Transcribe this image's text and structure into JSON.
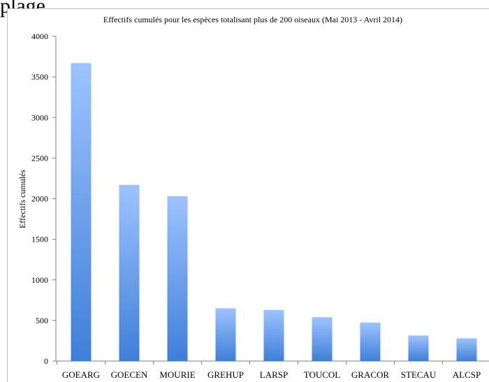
{
  "page": {
    "caption_fragment": "plage"
  },
  "chart_data": {
    "type": "bar",
    "title": "Effectifs cumulés pour les espèces totalisant plus de 200 oiseaux (Mai 2013 - Avril 2014)",
    "xlabel": "",
    "ylabel": "Effectifs cumulés",
    "ylim": [
      0,
      4000
    ],
    "yticks": [
      0,
      500,
      1000,
      1500,
      2000,
      2500,
      3000,
      3500,
      4000
    ],
    "categories": [
      "GOEARG",
      "GOECEN",
      "MOURIE",
      "GREHUP",
      "LARSP",
      "TOUCOL",
      "GRACOR",
      "STECAU",
      "ALCSP"
    ],
    "values": [
      3670,
      2170,
      2030,
      650,
      630,
      540,
      475,
      315,
      280
    ],
    "grid": false,
    "legend": "none",
    "colors": {
      "bar_top": "#9dc3ff",
      "bar_bottom": "#3f7fd8",
      "axis": "#7f7f7f",
      "frame": "#bdbdbd"
    }
  }
}
